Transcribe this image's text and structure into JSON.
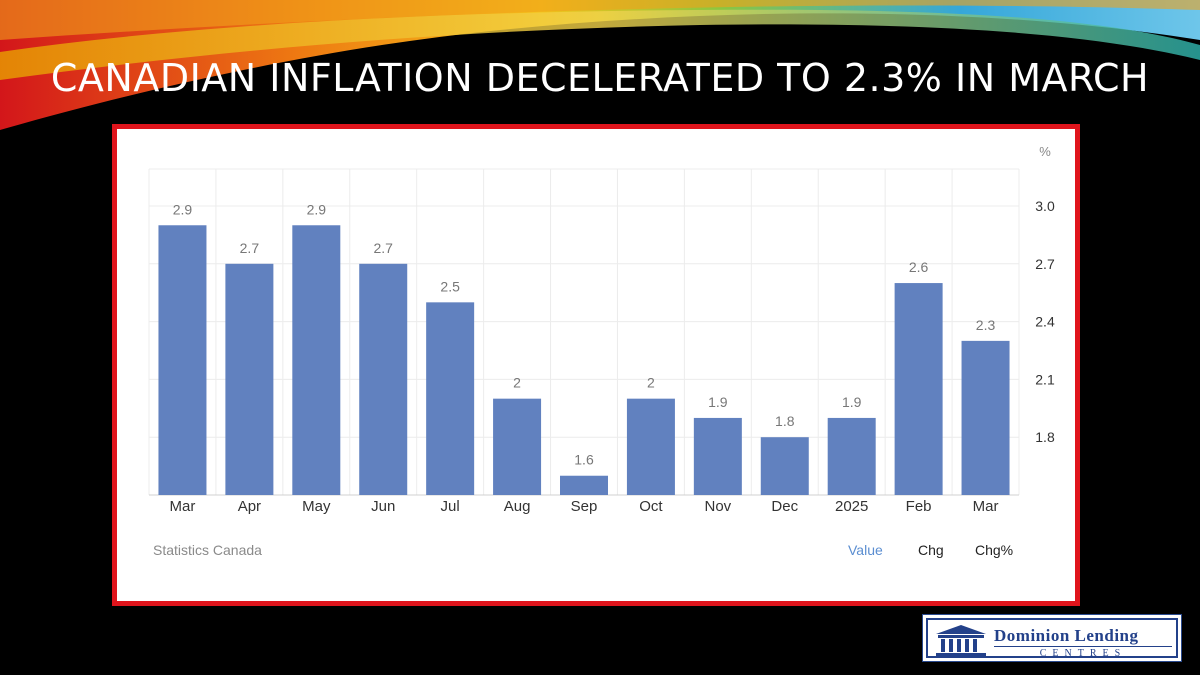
{
  "slide": {
    "title": "CANADIAN INFLATION DECELERATED TO 2.3% IN MARCH"
  },
  "chart_panel": {
    "source_label": "Statistics Canada",
    "tabs": [
      {
        "label": "Value",
        "active": true
      },
      {
        "label": "Chg",
        "active": false
      },
      {
        "label": "Chg%",
        "active": false
      }
    ]
  },
  "logo": {
    "name": "Dominion Lending",
    "sub": "CENTRES"
  },
  "colors": {
    "bar": "#6181bf",
    "frame": "#e0141c",
    "active_tab": "#5b8ed1",
    "logo_blue": "#23418a"
  },
  "chart_data": {
    "type": "bar",
    "title": "",
    "xlabel": "",
    "ylabel": "",
    "y_unit": "%",
    "categories": [
      "Mar",
      "Apr",
      "May",
      "Jun",
      "Jul",
      "Aug",
      "Sep",
      "Oct",
      "Nov",
      "Dec",
      "2025",
      "Feb",
      "Mar"
    ],
    "values": [
      2.9,
      2.7,
      2.9,
      2.7,
      2.5,
      2,
      1.6,
      2,
      1.9,
      1.8,
      1.9,
      2.6,
      2.3
    ],
    "data_labels": [
      "2.9",
      "2.7",
      "2.9",
      "2.7",
      "2.5",
      "2",
      "1.6",
      "2",
      "1.9",
      "1.8",
      "1.9",
      "2.6",
      "2.3"
    ],
    "yticks": [
      "3.0",
      "2.7",
      "2.4",
      "2.1",
      "1.8"
    ],
    "ytick_values": [
      3.0,
      2.7,
      2.4,
      2.1,
      1.8
    ],
    "ylim": [
      1.5,
      3.2
    ],
    "y_axis_side": "right",
    "grid": true,
    "legend": "none"
  }
}
